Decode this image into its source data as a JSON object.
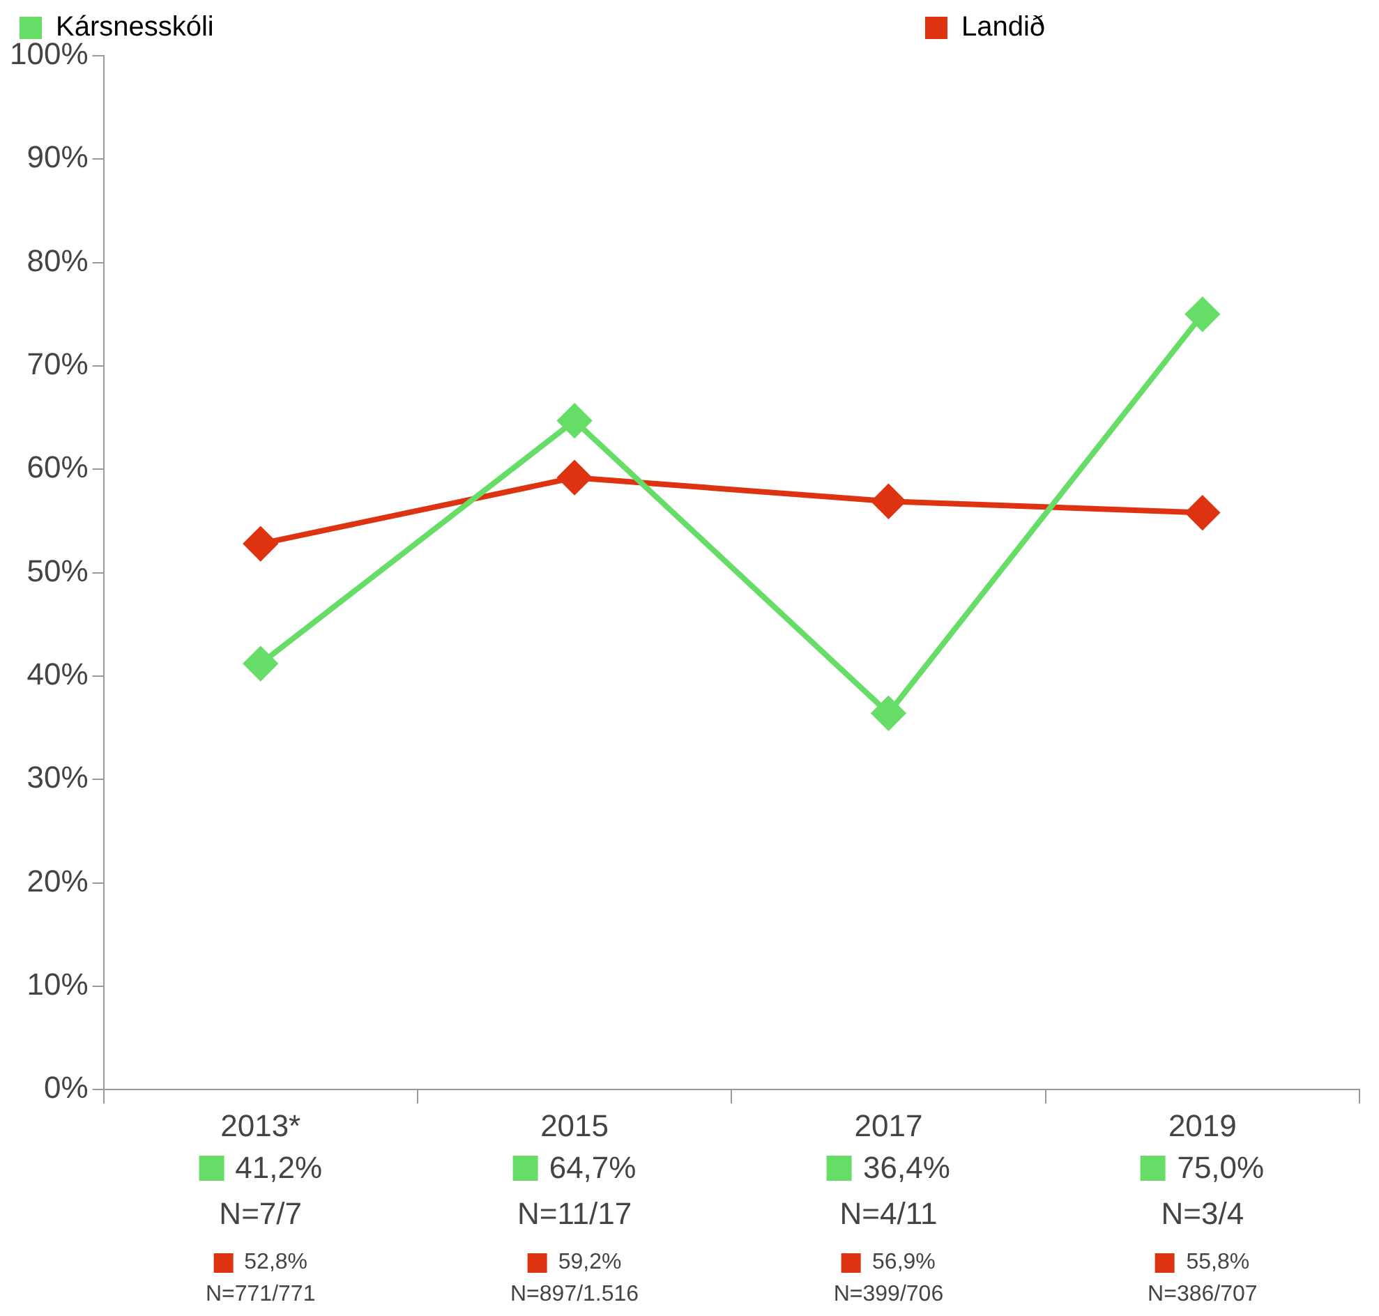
{
  "chart_data": {
    "type": "line",
    "categories": [
      "2013*",
      "2015",
      "2017",
      "2019"
    ],
    "series": [
      {
        "name": "Kársnesskóli",
        "color": "#66dd66",
        "values": [
          41.2,
          64.7,
          36.4,
          75.0
        ],
        "value_labels": [
          "41,2%",
          "64,7%",
          "36,4%",
          "75,0%"
        ]
      },
      {
        "name": "Landið",
        "color": "#dd3311",
        "values": [
          52.8,
          59.2,
          56.9,
          55.8
        ],
        "value_labels": [
          "52,8%",
          "59,2%",
          "56,9%",
          "55,8%"
        ]
      }
    ],
    "annotations": [
      "N=7/7",
      "N=771/771",
      "N=11/17",
      "N=897/1.516",
      "N=4/11",
      "N=399/706",
      "N=3/4",
      "N=386/707"
    ],
    "ylim": [
      0,
      100
    ],
    "yticks": [
      {
        "value": 0,
        "label": "0%"
      },
      {
        "value": 10,
        "label": "10%"
      },
      {
        "value": 20,
        "label": "20%"
      },
      {
        "value": 30,
        "label": "30%"
      },
      {
        "value": 40,
        "label": "40%"
      },
      {
        "value": 50,
        "label": "50%"
      },
      {
        "value": 60,
        "label": "60%"
      },
      {
        "value": 70,
        "label": "70%"
      },
      {
        "value": 80,
        "label": "80%"
      },
      {
        "value": 90,
        "label": "90%"
      },
      {
        "value": 100,
        "label": "100%"
      }
    ],
    "grid": false,
    "legend": "top",
    "marker": "diamond",
    "line_style": "solid"
  }
}
